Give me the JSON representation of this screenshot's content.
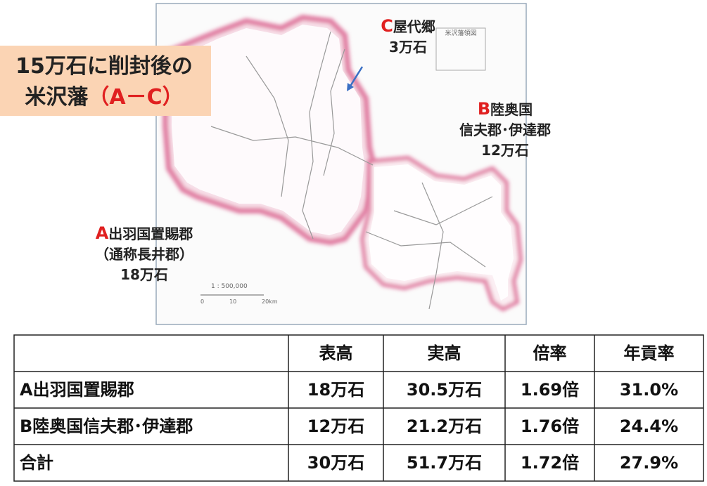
{
  "title": {
    "line1": "15万石に削封後の",
    "line2_text": "米沢藩",
    "line2_red": "（A－C）"
  },
  "map": {
    "caption": "米沢藩領図",
    "scale": "1 : 500,000",
    "scale_ticks": [
      "0",
      "10",
      "20km"
    ],
    "labels": [
      {
        "letter": "C",
        "lines": [
          "屋代郷",
          "3万石"
        ]
      },
      {
        "letter": "B",
        "lines": [
          "陸奥国",
          "信夫郡･伊達郡",
          "12万石"
        ]
      },
      {
        "letter": "A",
        "lines": [
          "出羽国置賜郡",
          "（通称長井郡）",
          "18万石"
        ]
      }
    ]
  },
  "table": {
    "header": [
      "表高",
      "実高",
      "倍率",
      "年貢率"
    ],
    "rows": [
      [
        "A出羽国置賜郡",
        "18万石",
        "30.5万石",
        "1.69倍",
        "31.0%"
      ],
      [
        "B陸奥国信夫郡･伊達郡",
        "12万石",
        "21.2万石",
        "1.76倍",
        "24.4%"
      ],
      [
        "合計",
        "30万石",
        "51.7万石",
        "1.72倍",
        "27.9%"
      ]
    ]
  }
}
